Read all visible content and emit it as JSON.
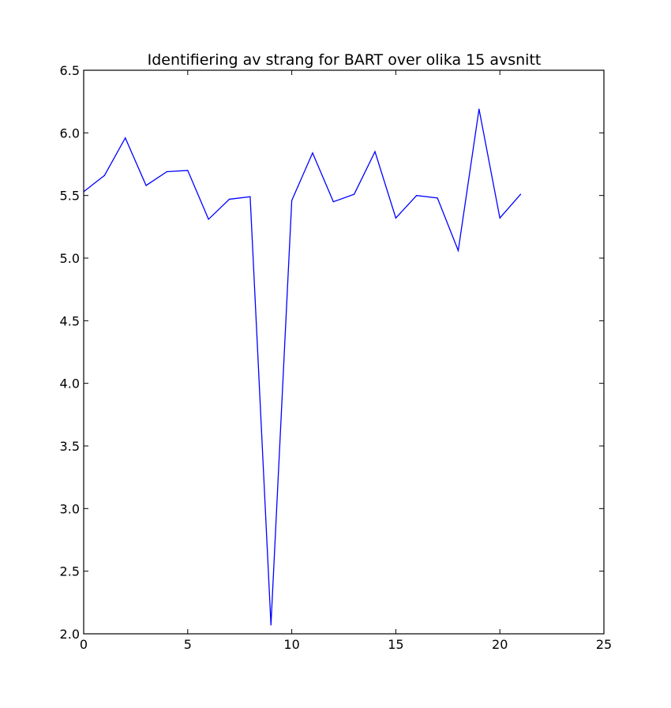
{
  "chart_data": {
    "type": "line",
    "title": "Identifiering av strang for BART over olika 15 avsnitt",
    "xlabel": "",
    "ylabel": "",
    "xlim": [
      0,
      25
    ],
    "ylim": [
      2.0,
      6.5
    ],
    "xticks": [
      0,
      5,
      10,
      15,
      20,
      25
    ],
    "yticks": [
      2.0,
      2.5,
      3.0,
      3.5,
      4.0,
      4.5,
      5.0,
      5.5,
      6.0,
      6.5
    ],
    "xtick_labels": [
      "0",
      "5",
      "10",
      "15",
      "20",
      "25"
    ],
    "ytick_labels": [
      "2.0",
      "2.5",
      "3.0",
      "3.5",
      "4.0",
      "4.5",
      "5.0",
      "5.5",
      "6.0",
      "6.5"
    ],
    "grid": false,
    "series": [
      {
        "color": "#0000ff",
        "x": [
          0,
          1,
          2,
          3,
          4,
          5,
          6,
          7,
          8,
          9,
          10,
          11,
          12,
          13,
          14,
          15,
          16,
          17,
          18,
          19,
          20,
          21
        ],
        "y": [
          5.53,
          5.66,
          5.96,
          5.58,
          5.69,
          5.7,
          5.31,
          5.47,
          5.49,
          2.07,
          5.46,
          5.84,
          5.45,
          5.51,
          5.85,
          5.32,
          5.5,
          5.48,
          5.06,
          6.19,
          5.32,
          5.51
        ]
      }
    ]
  }
}
